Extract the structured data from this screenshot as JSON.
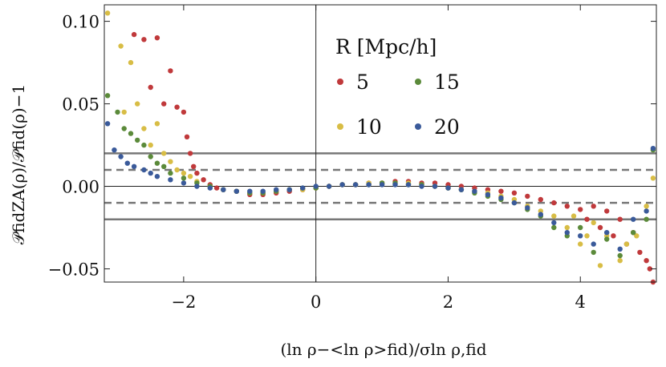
{
  "chart_data": {
    "type": "scatter",
    "title": "",
    "xlabel": "(ln ρ−<ln ρ>fid)/σln ρ,fid",
    "ylabel": "𝒫fidZA(ρ)/𝒫fid(ρ)−1",
    "xlim": [
      -3.2,
      5.15
    ],
    "ylim": [
      -0.058,
      0.11
    ],
    "x_ticks": [
      -2,
      0,
      2,
      4
    ],
    "y_ticks": [
      -0.05,
      0.0,
      0.05,
      0.1
    ],
    "x_tick_labels": [
      "−2",
      "0",
      "2",
      "4"
    ],
    "y_tick_labels": [
      "−0.05",
      "0.00",
      "0.05",
      "0.10"
    ],
    "grid": false,
    "vertical_line": 0,
    "horizontal_lines": [
      {
        "y": 0.02,
        "style": "solid"
      },
      {
        "y": 0.01,
        "style": "dashed"
      },
      {
        "y": 0.0,
        "style": "solid-thin"
      },
      {
        "y": -0.01,
        "style": "dashed"
      },
      {
        "y": -0.02,
        "style": "solid"
      }
    ],
    "legend": {
      "title": "R [Mpc/h]",
      "position": "top-right"
    },
    "series": [
      {
        "name": "5",
        "color": "#c0393b",
        "points": [
          [
            -2.75,
            0.092
          ],
          [
            -2.6,
            0.089
          ],
          [
            -2.4,
            0.09
          ],
          [
            -2.5,
            0.06
          ],
          [
            -2.3,
            0.05
          ],
          [
            -2.2,
            0.07
          ],
          [
            -2.1,
            0.048
          ],
          [
            -2.0,
            0.045
          ],
          [
            -1.95,
            0.03
          ],
          [
            -1.9,
            0.02
          ],
          [
            -1.85,
            0.012
          ],
          [
            -1.8,
            0.008
          ],
          [
            -1.7,
            0.004
          ],
          [
            -1.6,
            0.001
          ],
          [
            -1.5,
            -0.001
          ],
          [
            -1.4,
            -0.002
          ],
          [
            -1.2,
            -0.003
          ],
          [
            -1.0,
            -0.005
          ],
          [
            -0.8,
            -0.005
          ],
          [
            -0.6,
            -0.004
          ],
          [
            -0.4,
            -0.003
          ],
          [
            -0.2,
            -0.002
          ],
          [
            0.0,
            -0.001
          ],
          [
            0.2,
            0.0
          ],
          [
            0.4,
            0.001
          ],
          [
            0.6,
            0.001
          ],
          [
            0.8,
            0.002
          ],
          [
            1.0,
            0.002
          ],
          [
            1.2,
            0.003
          ],
          [
            1.4,
            0.003
          ],
          [
            1.6,
            0.002
          ],
          [
            1.8,
            0.002
          ],
          [
            2.0,
            0.001
          ],
          [
            2.2,
            0.0
          ],
          [
            2.4,
            -0.001
          ],
          [
            2.6,
            -0.002
          ],
          [
            2.8,
            -0.003
          ],
          [
            3.0,
            -0.004
          ],
          [
            3.2,
            -0.006
          ],
          [
            3.4,
            -0.008
          ],
          [
            3.6,
            -0.01
          ],
          [
            3.8,
            -0.012
          ],
          [
            4.0,
            -0.014
          ],
          [
            4.1,
            -0.02
          ],
          [
            4.2,
            -0.012
          ],
          [
            4.3,
            -0.025
          ],
          [
            4.4,
            -0.015
          ],
          [
            4.5,
            -0.03
          ],
          [
            4.6,
            -0.02
          ],
          [
            4.7,
            -0.035
          ],
          [
            4.8,
            -0.028
          ],
          [
            4.9,
            -0.04
          ],
          [
            5.0,
            -0.045
          ],
          [
            5.05,
            -0.05
          ],
          [
            5.1,
            -0.058
          ]
        ]
      },
      {
        "name": "10",
        "color": "#d8bd45",
        "points": [
          [
            -3.15,
            0.105
          ],
          [
            -2.95,
            0.085
          ],
          [
            -2.8,
            0.075
          ],
          [
            -2.9,
            0.045
          ],
          [
            -2.7,
            0.05
          ],
          [
            -2.6,
            0.035
          ],
          [
            -2.5,
            0.025
          ],
          [
            -2.4,
            0.038
          ],
          [
            -2.3,
            0.02
          ],
          [
            -2.2,
            0.015
          ],
          [
            -2.1,
            0.01
          ],
          [
            -2.0,
            0.008
          ],
          [
            -1.9,
            0.006
          ],
          [
            -1.8,
            0.003
          ],
          [
            -1.6,
            0.0
          ],
          [
            -1.4,
            -0.002
          ],
          [
            -1.2,
            -0.003
          ],
          [
            -1.0,
            -0.004
          ],
          [
            -0.8,
            -0.004
          ],
          [
            -0.6,
            -0.003
          ],
          [
            -0.4,
            -0.002
          ],
          [
            -0.2,
            -0.002
          ],
          [
            0.0,
            -0.001
          ],
          [
            0.2,
            0.0
          ],
          [
            0.4,
            0.001
          ],
          [
            0.6,
            0.001
          ],
          [
            0.8,
            0.002
          ],
          [
            1.0,
            0.002
          ],
          [
            1.2,
            0.002
          ],
          [
            1.4,
            0.002
          ],
          [
            1.6,
            0.001
          ],
          [
            1.8,
            0.0
          ],
          [
            2.0,
            -0.001
          ],
          [
            2.2,
            -0.002
          ],
          [
            2.4,
            -0.003
          ],
          [
            2.6,
            -0.004
          ],
          [
            2.8,
            -0.006
          ],
          [
            3.0,
            -0.008
          ],
          [
            3.2,
            -0.012
          ],
          [
            3.4,
            -0.015
          ],
          [
            3.6,
            -0.018
          ],
          [
            3.8,
            -0.025
          ],
          [
            3.9,
            -0.018
          ],
          [
            4.0,
            -0.035
          ],
          [
            4.1,
            -0.03
          ],
          [
            4.2,
            -0.022
          ],
          [
            4.3,
            -0.048
          ],
          [
            4.4,
            -0.03
          ],
          [
            4.6,
            -0.045
          ],
          [
            4.7,
            -0.035
          ],
          [
            4.85,
            -0.03
          ],
          [
            5.0,
            -0.012
          ],
          [
            5.1,
            0.005
          ]
        ]
      },
      {
        "name": "15",
        "color": "#5b8a3a",
        "points": [
          [
            -3.15,
            0.055
          ],
          [
            -3.0,
            0.045
          ],
          [
            -2.9,
            0.035
          ],
          [
            -2.8,
            0.032
          ],
          [
            -2.7,
            0.028
          ],
          [
            -2.6,
            0.025
          ],
          [
            -2.5,
            0.018
          ],
          [
            -2.4,
            0.014
          ],
          [
            -2.3,
            0.012
          ],
          [
            -2.2,
            0.008
          ],
          [
            -2.0,
            0.005
          ],
          [
            -1.8,
            0.002
          ],
          [
            -1.6,
            0.0
          ],
          [
            -1.4,
            -0.002
          ],
          [
            -1.2,
            -0.003
          ],
          [
            -1.0,
            -0.004
          ],
          [
            -0.8,
            -0.004
          ],
          [
            -0.6,
            -0.003
          ],
          [
            -0.4,
            -0.002
          ],
          [
            -0.2,
            -0.001
          ],
          [
            0.0,
            -0.001
          ],
          [
            0.2,
            0.0
          ],
          [
            0.4,
            0.001
          ],
          [
            0.6,
            0.001
          ],
          [
            0.8,
            0.001
          ],
          [
            1.0,
            0.002
          ],
          [
            1.2,
            0.002
          ],
          [
            1.4,
            0.001
          ],
          [
            1.6,
            0.001
          ],
          [
            1.8,
            0.0
          ],
          [
            2.0,
            -0.001
          ],
          [
            2.2,
            -0.002
          ],
          [
            2.4,
            -0.004
          ],
          [
            2.6,
            -0.006
          ],
          [
            2.8,
            -0.008
          ],
          [
            3.0,
            -0.01
          ],
          [
            3.2,
            -0.014
          ],
          [
            3.4,
            -0.018
          ],
          [
            3.6,
            -0.025
          ],
          [
            3.8,
            -0.03
          ],
          [
            4.0,
            -0.025
          ],
          [
            4.2,
            -0.04
          ],
          [
            4.4,
            -0.032
          ],
          [
            4.6,
            -0.042
          ],
          [
            4.8,
            -0.028
          ],
          [
            5.0,
            -0.02
          ],
          [
            5.1,
            0.022
          ]
        ]
      },
      {
        "name": "20",
        "color": "#3a5a9a",
        "points": [
          [
            -3.15,
            0.038
          ],
          [
            -3.05,
            0.022
          ],
          [
            -2.95,
            0.018
          ],
          [
            -2.85,
            0.014
          ],
          [
            -2.75,
            0.012
          ],
          [
            -2.6,
            0.01
          ],
          [
            -2.5,
            0.008
          ],
          [
            -2.4,
            0.006
          ],
          [
            -2.2,
            0.004
          ],
          [
            -2.0,
            0.002
          ],
          [
            -1.8,
            0.0
          ],
          [
            -1.6,
            -0.001
          ],
          [
            -1.4,
            -0.002
          ],
          [
            -1.2,
            -0.003
          ],
          [
            -1.0,
            -0.003
          ],
          [
            -0.8,
            -0.003
          ],
          [
            -0.6,
            -0.002
          ],
          [
            -0.4,
            -0.002
          ],
          [
            -0.2,
            -0.001
          ],
          [
            0.0,
            0.0
          ],
          [
            0.2,
            0.0
          ],
          [
            0.4,
            0.001
          ],
          [
            0.6,
            0.001
          ],
          [
            0.8,
            0.001
          ],
          [
            1.0,
            0.001
          ],
          [
            1.2,
            0.001
          ],
          [
            1.4,
            0.001
          ],
          [
            1.6,
            0.0
          ],
          [
            1.8,
            0.0
          ],
          [
            2.0,
            -0.001
          ],
          [
            2.2,
            -0.002
          ],
          [
            2.4,
            -0.003
          ],
          [
            2.6,
            -0.005
          ],
          [
            2.8,
            -0.007
          ],
          [
            3.0,
            -0.01
          ],
          [
            3.2,
            -0.013
          ],
          [
            3.4,
            -0.017
          ],
          [
            3.6,
            -0.022
          ],
          [
            3.8,
            -0.028
          ],
          [
            4.0,
            -0.03
          ],
          [
            4.2,
            -0.035
          ],
          [
            4.4,
            -0.028
          ],
          [
            4.6,
            -0.038
          ],
          [
            4.8,
            -0.02
          ],
          [
            5.0,
            -0.015
          ],
          [
            5.1,
            0.023
          ]
        ]
      }
    ]
  }
}
